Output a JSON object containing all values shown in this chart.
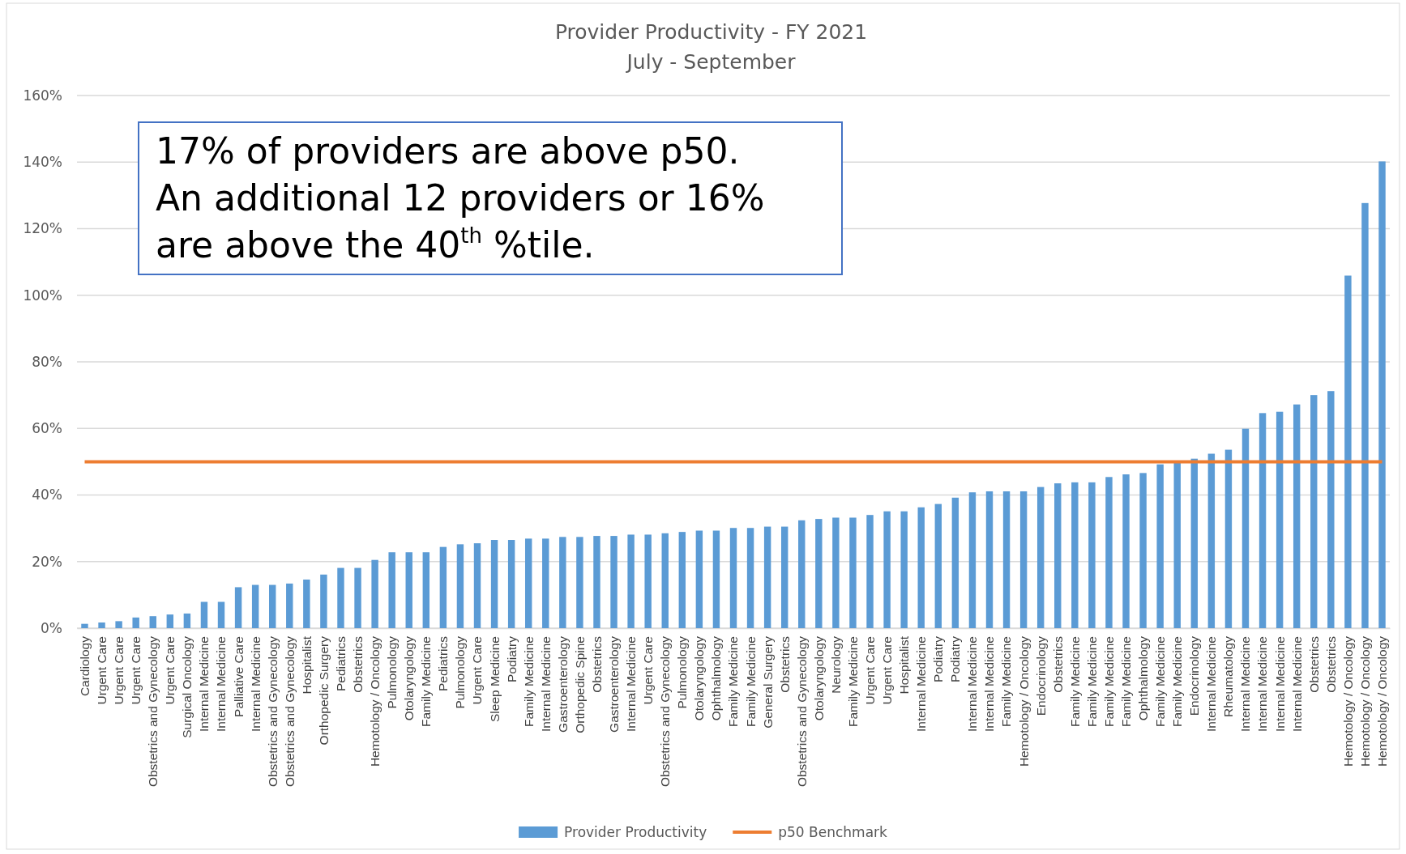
{
  "chart_data": {
    "type": "bar",
    "title": "Provider Productivity - FY 2021",
    "subtitle": "July - September",
    "categories": [
      "Cardiology",
      "Urgent Care",
      "Urgent Care",
      "Urgent Care",
      "Obstetrics and Gynecology",
      "Urgent Care",
      "Surgical Oncology",
      "Internal Medicine",
      "Internal Medicine",
      "Palliative Care",
      "Internal Medicine",
      "Obstetrics and Gynecology",
      "Obstetrics and Gynecology",
      "Hospitalist",
      "Orthopedic Surgery",
      "Pediatrics",
      "Obstetrics",
      "Hemotology / Oncology",
      "Pulmonology",
      "Otolaryngology",
      "Family Medicine",
      "Pediatrics",
      "Pulmonology",
      "Urgent Care",
      "Sleep Medicine",
      "Podiatry",
      "Family Medicine",
      "Internal Medicine",
      "Gastroenterology",
      "Orthopedic Spine",
      "Obstetrics",
      "Gastroenterology",
      "Internal Medicine",
      "Urgent Care",
      "Obstetrics and Gynecology",
      "Pulmonology",
      "Otolaryngology",
      "Ophthalmology",
      "Family Medicine",
      "Family Medicine",
      "General Surgery",
      "Obstetrics",
      "Obstetrics and Gynecology",
      "Otolaryngology",
      "Neurology",
      "Family Medicine",
      "Urgent Care",
      "Urgent Care",
      "Hospitalist",
      "Internal Medicine",
      "Podiatry",
      "Podiatry",
      "Internal Medicine",
      "Internal Medicine",
      "Family Medicine",
      "Hemotology / Oncology",
      "Endocrinology",
      "Obstetrics",
      "Family Medicine",
      "Family Medicine",
      "Family Medicine",
      "Family Medicine",
      "Ophthalmology",
      "Family Medicine",
      "Family Medicine",
      "Endocrinology",
      "Internal Medicine",
      "Rheumatology",
      "Internal Medicine",
      "Internal Medicine",
      "Internal Medicine",
      "Internal Medicine",
      "Obstetrics",
      "Obstetrics",
      "Hemotology / Oncology",
      "Hemotology / Oncology",
      "Hemotology / Oncology"
    ],
    "series": [
      {
        "name": "Provider Productivity",
        "color": "#5b9bd5",
        "values": [
          1.3,
          1.7,
          2.1,
          3.2,
          3.6,
          4.1,
          4.4,
          7.9,
          7.9,
          12.3,
          13.0,
          13.0,
          13.4,
          14.6,
          16.1,
          18.1,
          18.1,
          20.5,
          22.8,
          22.8,
          22.8,
          24.4,
          25.2,
          25.5,
          26.5,
          26.5,
          26.9,
          26.9,
          27.4,
          27.4,
          27.7,
          27.7,
          28.1,
          28.1,
          28.5,
          28.9,
          29.3,
          29.3,
          30.1,
          30.1,
          30.5,
          30.5,
          32.4,
          32.8,
          33.2,
          33.2,
          34.0,
          35.1,
          35.1,
          36.3,
          37.3,
          39.2,
          40.8,
          41.1,
          41.1,
          41.1,
          42.4,
          43.5,
          43.8,
          43.8,
          45.4,
          46.2,
          46.6,
          49.2,
          49.9,
          50.9,
          52.4,
          53.6,
          59.9,
          64.6,
          65.0,
          67.2,
          70.0,
          71.2,
          105.9,
          127.7,
          140.2
        ]
      },
      {
        "name": "p50 Benchmark",
        "type": "line",
        "color": "#ed7d31",
        "values": [
          50,
          50,
          50,
          50,
          50,
          50,
          50,
          50,
          50,
          50,
          50,
          50,
          50,
          50,
          50,
          50,
          50,
          50,
          50,
          50,
          50,
          50,
          50,
          50,
          50,
          50,
          50,
          50,
          50,
          50,
          50,
          50,
          50,
          50,
          50,
          50,
          50,
          50,
          50,
          50,
          50,
          50,
          50,
          50,
          50,
          50,
          50,
          50,
          50,
          50,
          50,
          50,
          50,
          50,
          50,
          50,
          50,
          50,
          50,
          50,
          50,
          50,
          50,
          50,
          50,
          50,
          50,
          50,
          50,
          50,
          50,
          50,
          50,
          50,
          50,
          50,
          50
        ]
      }
    ],
    "ylim": [
      0,
      160
    ],
    "yticks": [
      {
        "value": 0,
        "label": "0%"
      },
      {
        "value": 20,
        "label": "20%"
      },
      {
        "value": 40,
        "label": "40%"
      },
      {
        "value": 60,
        "label": "60%"
      },
      {
        "value": 80,
        "label": "80%"
      },
      {
        "value": 100,
        "label": "100%"
      },
      {
        "value": 120,
        "label": "120%"
      },
      {
        "value": 140,
        "label": "140%"
      },
      {
        "value": 160,
        "label": "160%"
      }
    ],
    "grid": "y",
    "legend": "bottom",
    "marker": "none",
    "line_style": "solid",
    "annotations": [
      "17% of providers are above p50. An additional 12 providers or 16% are above the 40$^{th}$ %tile."
    ]
  }
}
